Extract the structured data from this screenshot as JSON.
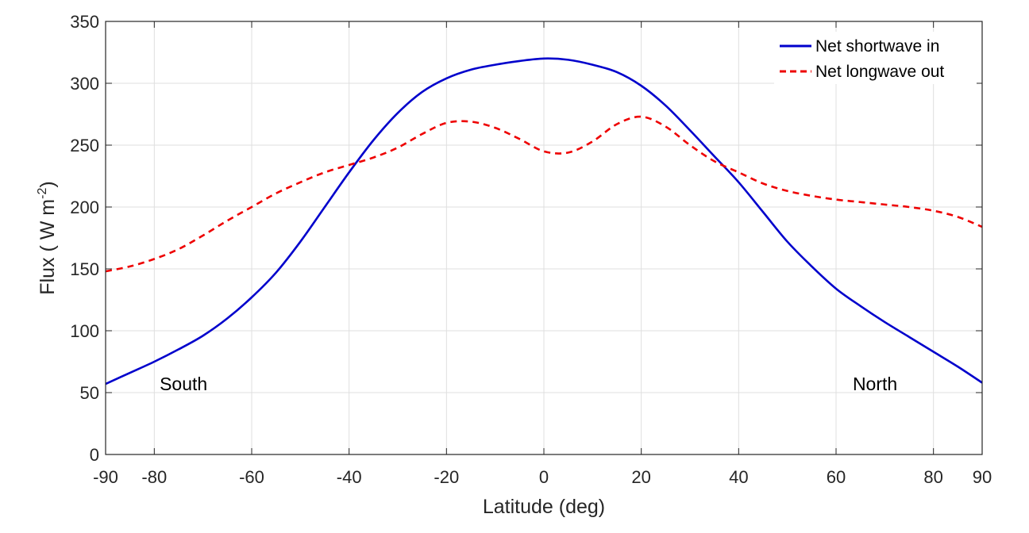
{
  "chart_data": {
    "type": "line",
    "xlabel": "Latitude (deg)",
    "ylabel": "Flux ( W m",
    "ylabel_exponent": "-2",
    "ylabel_close": ")",
    "xlim": [
      -90,
      90
    ],
    "ylim": [
      0,
      350
    ],
    "xticks": [
      -90,
      -80,
      -60,
      -40,
      -20,
      0,
      20,
      40,
      60,
      80,
      90
    ],
    "yticks": [
      0,
      50,
      100,
      150,
      200,
      250,
      300,
      350
    ],
    "grid": true,
    "legend_position": "top-right",
    "series": [
      {
        "name": "Net shortwave in",
        "color": "#0000cc",
        "style": "solid",
        "x": [
          -90,
          -85,
          -80,
          -75,
          -70,
          -65,
          -60,
          -55,
          -50,
          -45,
          -40,
          -35,
          -30,
          -25,
          -20,
          -15,
          -10,
          -5,
          0,
          5,
          10,
          15,
          20,
          25,
          30,
          35,
          40,
          45,
          50,
          55,
          60,
          65,
          70,
          75,
          80,
          85,
          90
        ],
        "y": [
          57,
          66,
          75,
          85,
          96,
          110,
          127,
          147,
          172,
          200,
          228,
          254,
          276,
          293,
          304,
          311,
          315,
          318,
          320,
          319,
          315,
          309,
          298,
          282,
          262,
          241,
          220,
          196,
          172,
          152,
          134,
          120,
          107,
          95,
          83,
          71,
          58
        ]
      },
      {
        "name": "Net longwave out",
        "color": "#ee0000",
        "style": "dashed",
        "x": [
          -90,
          -85,
          -80,
          -75,
          -70,
          -65,
          -60,
          -55,
          -50,
          -45,
          -40,
          -35,
          -30,
          -25,
          -20,
          -15,
          -10,
          -5,
          0,
          5,
          10,
          15,
          20,
          25,
          30,
          35,
          40,
          45,
          50,
          55,
          60,
          65,
          70,
          75,
          80,
          85,
          90
        ],
        "y": [
          148,
          152,
          158,
          166,
          177,
          189,
          200,
          211,
          220,
          228,
          234,
          240,
          248,
          259,
          268,
          269,
          264,
          255,
          245,
          244,
          253,
          267,
          273,
          265,
          250,
          237,
          228,
          219,
          213,
          209,
          206,
          204,
          202,
          200,
          197,
          192,
          184
        ]
      }
    ],
    "annotations": [
      {
        "text": "South",
        "x": -74,
        "y": 52
      },
      {
        "text": "North",
        "x": 68,
        "y": 52
      }
    ]
  }
}
